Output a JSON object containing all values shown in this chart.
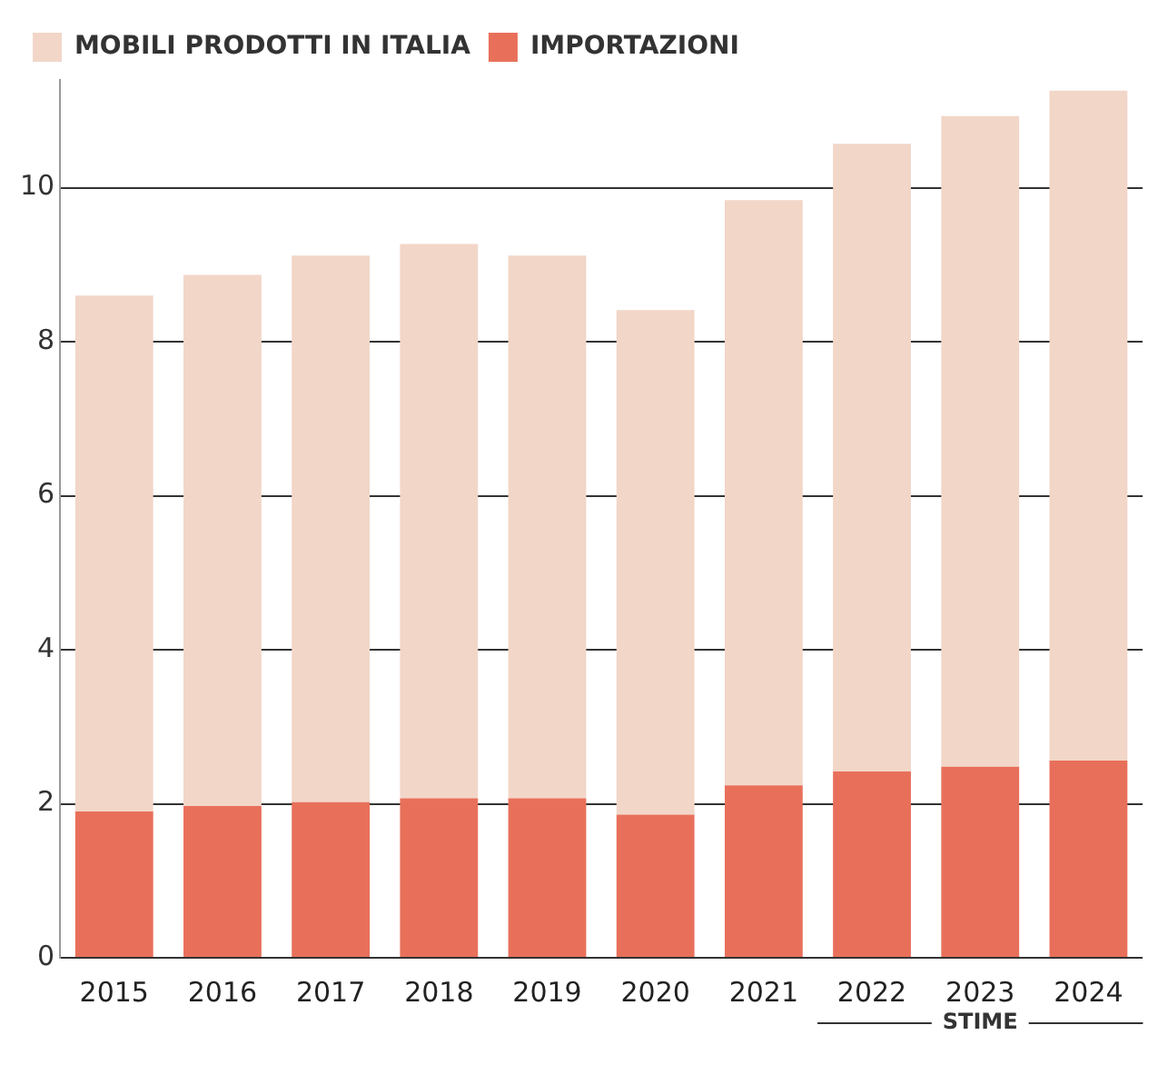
{
  "chart_data": {
    "type": "bar",
    "stacked": true,
    "categories": [
      "2015",
      "2016",
      "2017",
      "2018",
      "2019",
      "2020",
      "2021",
      "2022",
      "2023",
      "2024"
    ],
    "series": [
      {
        "name": "IMPORTAZIONI",
        "color": "#e8705a",
        "values": [
          1.9,
          1.97,
          2.02,
          2.07,
          2.07,
          1.86,
          2.24,
          2.42,
          2.48,
          2.56
        ]
      },
      {
        "name": "MOBILI PRODOTTI IN ITALIA",
        "color": "#f2d6c8",
        "values": [
          6.7,
          6.9,
          7.1,
          7.2,
          7.05,
          6.55,
          7.6,
          8.15,
          8.45,
          8.7
        ]
      }
    ],
    "ylim": [
      0,
      11.4
    ],
    "yticks": [
      0,
      2,
      4,
      6,
      8,
      10
    ],
    "grid": "y",
    "legend": "top left",
    "annotations": [
      "STIME"
    ]
  }
}
